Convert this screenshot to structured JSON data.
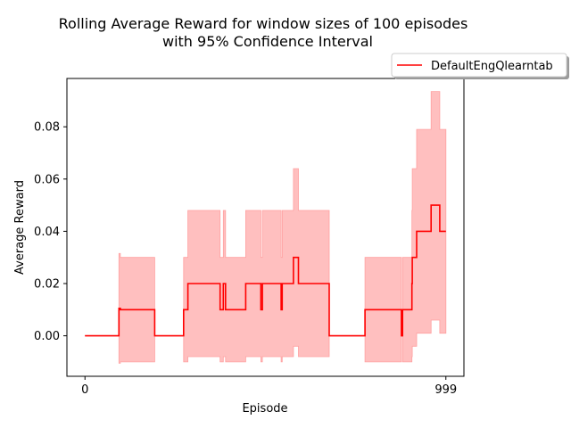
{
  "chart_data": {
    "type": "line",
    "title_line1": "Rolling Average Reward for window sizes of 100 episodes",
    "title_line2": "with 95% Confidence Interval",
    "xlabel": "Episode",
    "ylabel": "Average Reward",
    "xlim": [
      -50,
      1049
    ],
    "ylim": [
      -0.0155,
      0.0985
    ],
    "xticks": [
      0,
      999
    ],
    "xtick_labels": [
      "0",
      "999"
    ],
    "yticks": [
      0.0,
      0.02,
      0.04,
      0.06,
      0.08
    ],
    "ytick_labels": [
      "0.00",
      "0.02",
      "0.04",
      "0.06",
      "0.08"
    ],
    "grid": false,
    "legend_position": "upper-right-outside",
    "colors": {
      "line": "#ff0000",
      "band": "#ffbfbf",
      "band_edge": "#ffa0a0"
    },
    "series": [
      {
        "name": "DefaultEngQlearntab",
        "steps": [
          [
            0,
            0.0
          ],
          [
            94,
            0.0105
          ],
          [
            98,
            0.01
          ],
          [
            193,
            0.0
          ],
          [
            273,
            0.01
          ],
          [
            285,
            0.02
          ],
          [
            374,
            0.01
          ],
          [
            383,
            0.02
          ],
          [
            389,
            0.01
          ],
          [
            445,
            0.02
          ],
          [
            487,
            0.01
          ],
          [
            491,
            0.02
          ],
          [
            543,
            0.01
          ],
          [
            546,
            0.02
          ],
          [
            577,
            0.03
          ],
          [
            591,
            0.02
          ],
          [
            676,
            0.0
          ],
          [
            775,
            0.01
          ],
          [
            876,
            0.0
          ],
          [
            879,
            0.01
          ],
          [
            905,
            0.02
          ],
          [
            906,
            0.03
          ],
          [
            918,
            0.04
          ],
          [
            958,
            0.05
          ],
          [
            982,
            0.04
          ],
          [
            999,
            0.04
          ]
        ],
        "ci_steps": [
          [
            0,
            0.0,
            0.0
          ],
          [
            94,
            -0.0105,
            0.0315
          ],
          [
            98,
            -0.01,
            0.03
          ],
          [
            193,
            0.0,
            0.0
          ],
          [
            273,
            -0.01,
            0.03
          ],
          [
            285,
            -0.008,
            0.048
          ],
          [
            374,
            -0.01,
            0.03
          ],
          [
            383,
            -0.008,
            0.048
          ],
          [
            389,
            -0.01,
            0.03
          ],
          [
            445,
            -0.008,
            0.048
          ],
          [
            487,
            -0.01,
            0.03
          ],
          [
            491,
            -0.008,
            0.048
          ],
          [
            543,
            -0.01,
            0.03
          ],
          [
            546,
            -0.008,
            0.048
          ],
          [
            577,
            -0.004,
            0.064
          ],
          [
            591,
            -0.008,
            0.048
          ],
          [
            676,
            0.0,
            0.0
          ],
          [
            775,
            -0.01,
            0.03
          ],
          [
            876,
            0.0,
            0.0
          ],
          [
            879,
            -0.01,
            0.03
          ],
          [
            905,
            -0.008,
            0.048
          ],
          [
            906,
            -0.004,
            0.064
          ],
          [
            918,
            0.001,
            0.079
          ],
          [
            958,
            0.006,
            0.0935
          ],
          [
            982,
            0.001,
            0.079
          ],
          [
            999,
            0.001,
            0.079
          ]
        ]
      }
    ]
  }
}
